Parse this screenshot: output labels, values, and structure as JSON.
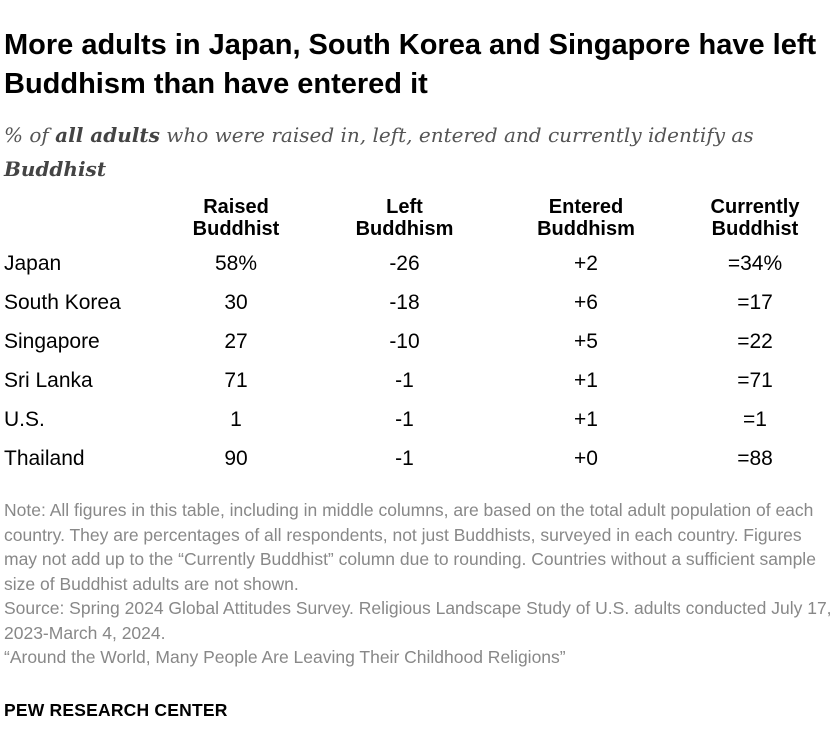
{
  "title": "More adults in Japan, South Korea and Singapore have left Buddhism than have entered it",
  "subtitle": {
    "prefix": "% of ",
    "emphasis": "all adults",
    "middle": " who were raised in, left, entered and currently identify as ",
    "emphasis2": "Buddhist"
  },
  "chart_data": {
    "type": "table",
    "columns": [
      "",
      "Raised\nBuddhist",
      "Left\nBuddhism",
      "Entered\nBuddhism",
      "Currently\nBuddhist"
    ],
    "rows": [
      {
        "country": "Japan",
        "raised": "58%",
        "left": "-26",
        "entered": "+2",
        "current": "=34%"
      },
      {
        "country": "South Korea",
        "raised": "30",
        "left": "-18",
        "entered": "+6",
        "current": "=17"
      },
      {
        "country": "Singapore",
        "raised": "27",
        "left": "-10",
        "entered": "+5",
        "current": "=22"
      },
      {
        "country": "Sri Lanka",
        "raised": "71",
        "left": "-1",
        "entered": "+1",
        "current": "=71"
      },
      {
        "country": "U.S.",
        "raised": "1",
        "left": "-1",
        "entered": "+1",
        "current": "=1"
      },
      {
        "country": "Thailand",
        "raised": "90",
        "left": "-1",
        "entered": "+0",
        "current": "=88"
      }
    ]
  },
  "notes": {
    "note": "Note: All figures in this table, including in middle columns, are based on the total adult population of each country. They are percentages of all respondents, not just Buddhists, surveyed in each country. Figures may not add up to the “Currently Buddhist” column due to rounding. Countries without a sufficient sample size of Buddhist adults are not shown.",
    "source": "Source: Spring 2024 Global Attitudes Survey. Religious Landscape Study of U.S. adults conducted July 17, 2023-March 4, 2024.",
    "report": "“Around the World, Many People Are Leaving Their Childhood Religions”"
  },
  "brand": "PEW RESEARCH CENTER"
}
